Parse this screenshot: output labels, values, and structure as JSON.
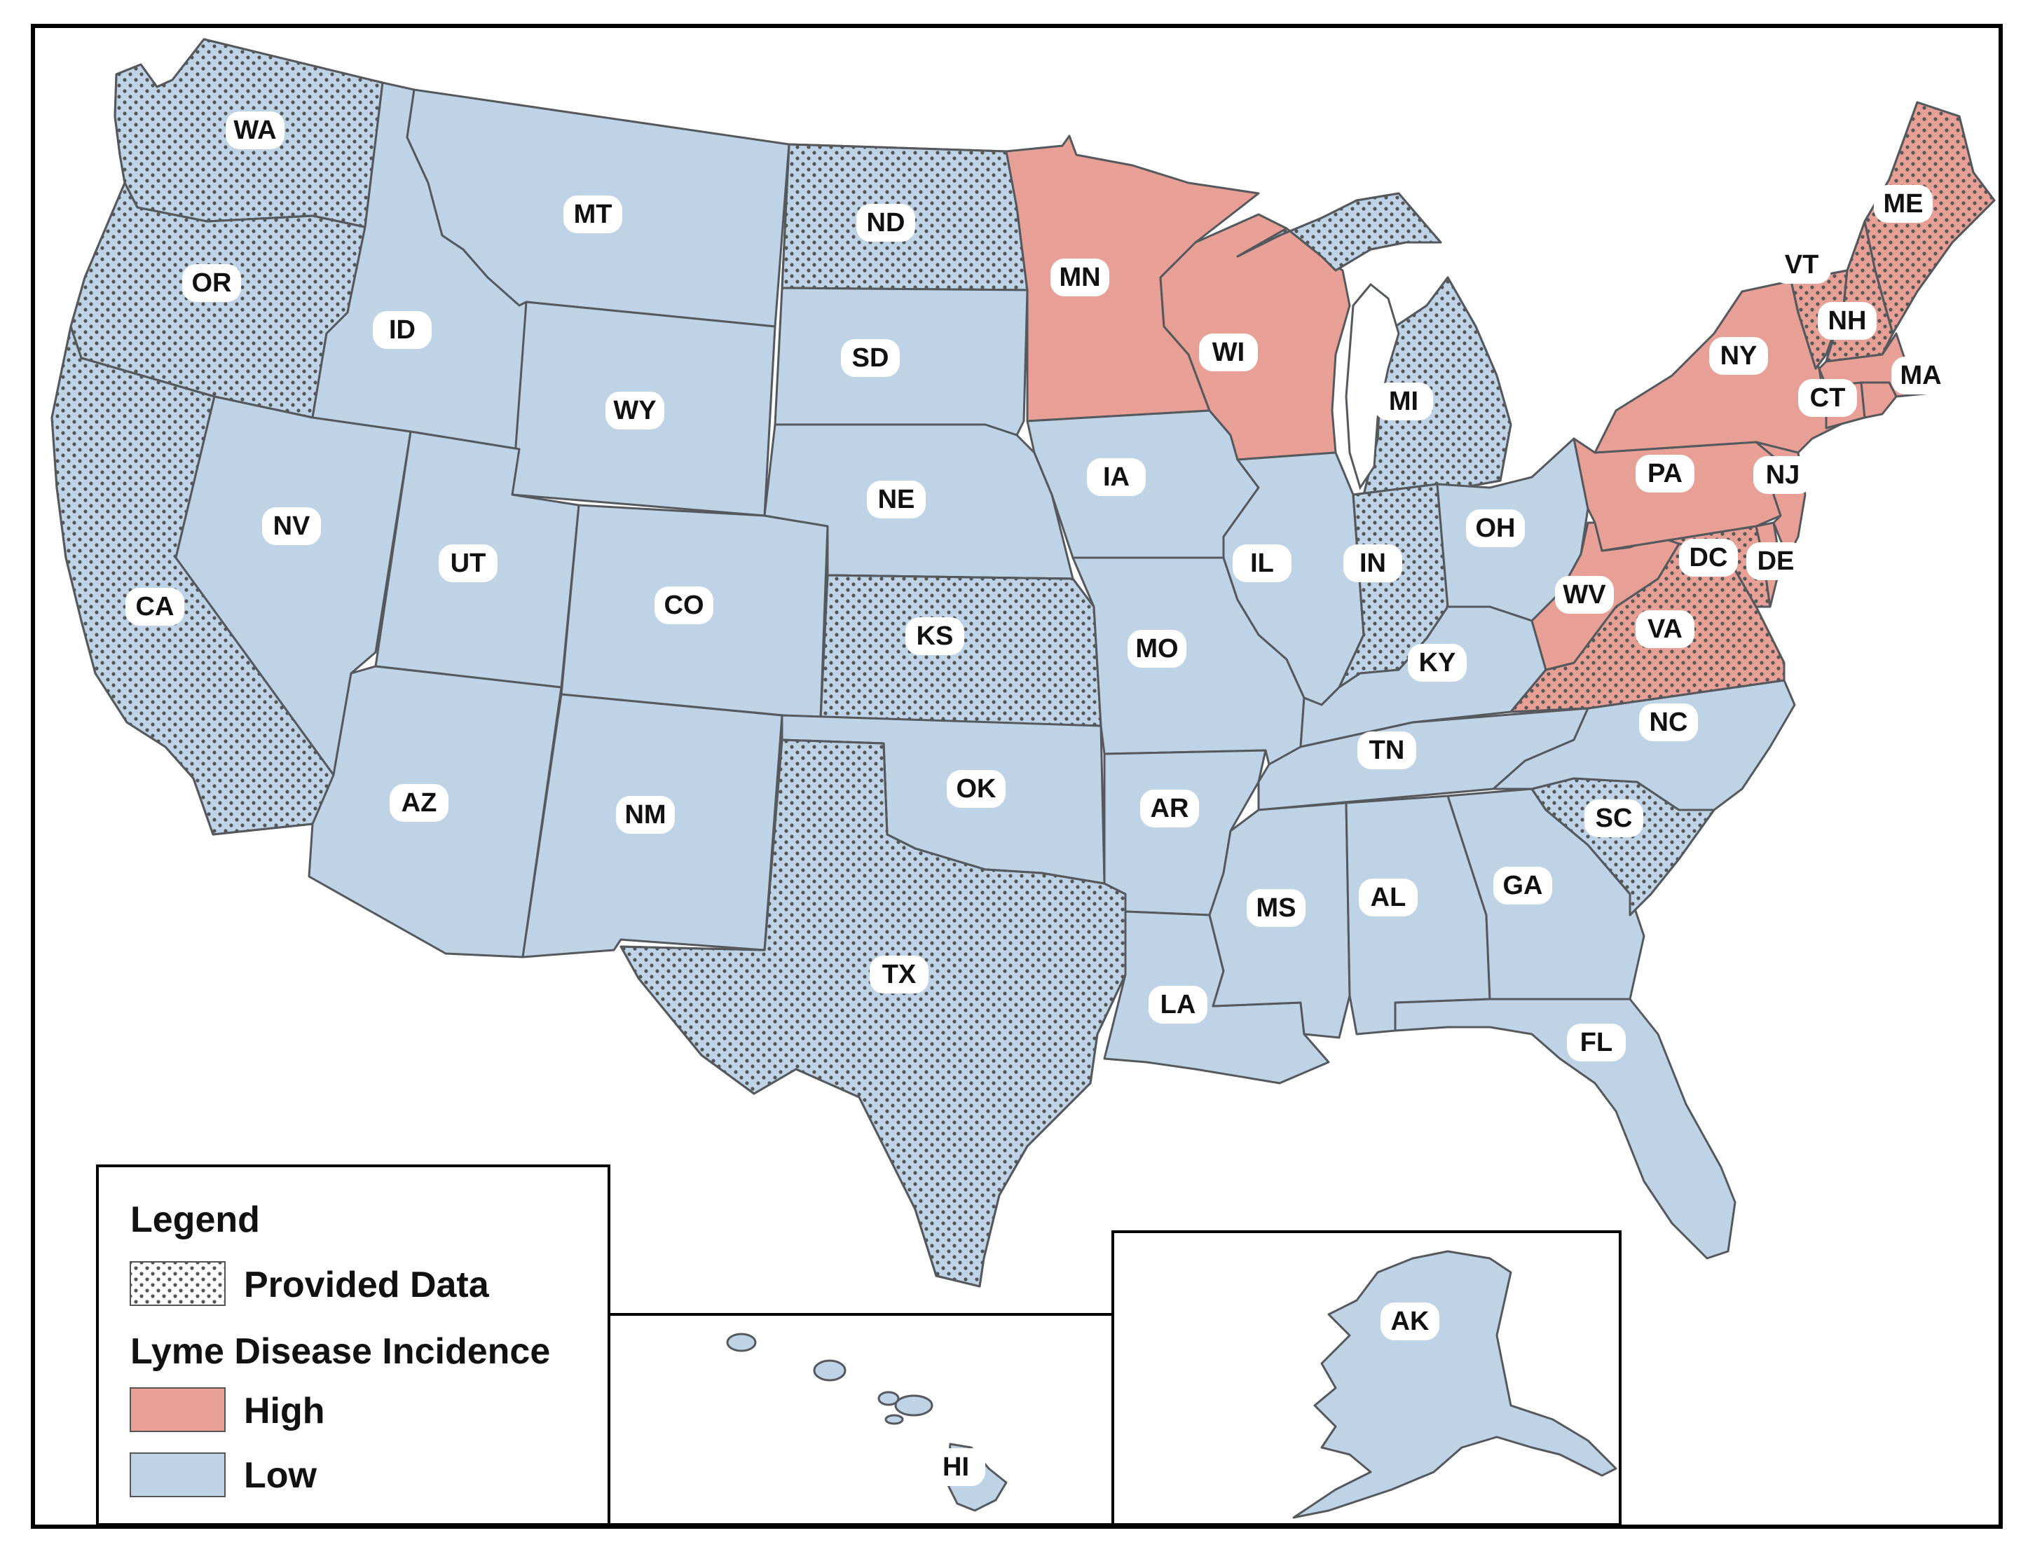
{
  "legend": {
    "title": "Legend",
    "pattern_label": "Provided Data",
    "incidence_heading": "Lyme Disease Incidence",
    "high_label": "High",
    "low_label": "Low"
  },
  "colors": {
    "high": "#e8a096",
    "low": "#bed3e6",
    "border": "#55595e",
    "dots": "#555555"
  },
  "states": {
    "WA": {
      "label": "WA",
      "incidence": "Low",
      "provided_data": true
    },
    "OR": {
      "label": "OR",
      "incidence": "Low",
      "provided_data": true
    },
    "CA": {
      "label": "CA",
      "incidence": "Low",
      "provided_data": true
    },
    "ID": {
      "label": "ID",
      "incidence": "Low",
      "provided_data": false
    },
    "NV": {
      "label": "NV",
      "incidence": "Low",
      "provided_data": false
    },
    "MT": {
      "label": "MT",
      "incidence": "Low",
      "provided_data": false
    },
    "WY": {
      "label": "WY",
      "incidence": "Low",
      "provided_data": false
    },
    "UT": {
      "label": "UT",
      "incidence": "Low",
      "provided_data": false
    },
    "AZ": {
      "label": "AZ",
      "incidence": "Low",
      "provided_data": false
    },
    "CO": {
      "label": "CO",
      "incidence": "Low",
      "provided_data": false
    },
    "NM": {
      "label": "NM",
      "incidence": "Low",
      "provided_data": false
    },
    "ND": {
      "label": "ND",
      "incidence": "Low",
      "provided_data": true
    },
    "SD": {
      "label": "SD",
      "incidence": "Low",
      "provided_data": false
    },
    "NE": {
      "label": "NE",
      "incidence": "Low",
      "provided_data": false
    },
    "KS": {
      "label": "KS",
      "incidence": "Low",
      "provided_data": true
    },
    "OK": {
      "label": "OK",
      "incidence": "Low",
      "provided_data": false
    },
    "TX": {
      "label": "TX",
      "incidence": "Low",
      "provided_data": true
    },
    "MN": {
      "label": "MN",
      "incidence": "High",
      "provided_data": false
    },
    "IA": {
      "label": "IA",
      "incidence": "Low",
      "provided_data": false
    },
    "MO": {
      "label": "MO",
      "incidence": "Low",
      "provided_data": false
    },
    "AR": {
      "label": "AR",
      "incidence": "Low",
      "provided_data": false
    },
    "LA": {
      "label": "LA",
      "incidence": "Low",
      "provided_data": false
    },
    "WI": {
      "label": "WI",
      "incidence": "High",
      "provided_data": false
    },
    "IL": {
      "label": "IL",
      "incidence": "Low",
      "provided_data": false
    },
    "MI": {
      "label": "MI",
      "incidence": "Low",
      "provided_data": true
    },
    "IN": {
      "label": "IN",
      "incidence": "Low",
      "provided_data": true
    },
    "OH": {
      "label": "OH",
      "incidence": "Low",
      "provided_data": false
    },
    "KY": {
      "label": "KY",
      "incidence": "Low",
      "provided_data": false
    },
    "TN": {
      "label": "TN",
      "incidence": "Low",
      "provided_data": false
    },
    "MS": {
      "label": "MS",
      "incidence": "Low",
      "provided_data": false
    },
    "AL": {
      "label": "AL",
      "incidence": "Low",
      "provided_data": false
    },
    "GA": {
      "label": "GA",
      "incidence": "Low",
      "provided_data": false
    },
    "FL": {
      "label": "FL",
      "incidence": "Low",
      "provided_data": false
    },
    "SC": {
      "label": "SC",
      "incidence": "Low",
      "provided_data": true
    },
    "NC": {
      "label": "NC",
      "incidence": "Low",
      "provided_data": false
    },
    "VA": {
      "label": "VA",
      "incidence": "High",
      "provided_data": true
    },
    "WV": {
      "label": "WV",
      "incidence": "High",
      "provided_data": false
    },
    "PA": {
      "label": "PA",
      "incidence": "High",
      "provided_data": false
    },
    "NY": {
      "label": "NY",
      "incidence": "High",
      "provided_data": false
    },
    "NJ": {
      "label": "NJ",
      "incidence": "High",
      "provided_data": false
    },
    "DE": {
      "label": "DE",
      "incidence": "High",
      "provided_data": false
    },
    "DC": {
      "label": "DC",
      "incidence": "High",
      "provided_data": false
    },
    "MD": {
      "label": "",
      "incidence": "High",
      "provided_data": true
    },
    "CT": {
      "label": "CT",
      "incidence": "High",
      "provided_data": false
    },
    "RI": {
      "label": "",
      "incidence": "High",
      "provided_data": false
    },
    "MA": {
      "label": "MA",
      "incidence": "High",
      "provided_data": false
    },
    "VT": {
      "label": "VT",
      "incidence": "High",
      "provided_data": true
    },
    "NH": {
      "label": "NH",
      "incidence": "High",
      "provided_data": true
    },
    "ME": {
      "label": "ME",
      "incidence": "High",
      "provided_data": true
    },
    "AK": {
      "label": "AK",
      "incidence": "Low",
      "provided_data": false
    },
    "HI": {
      "label": "HI",
      "incidence": "Low",
      "provided_data": false
    }
  }
}
